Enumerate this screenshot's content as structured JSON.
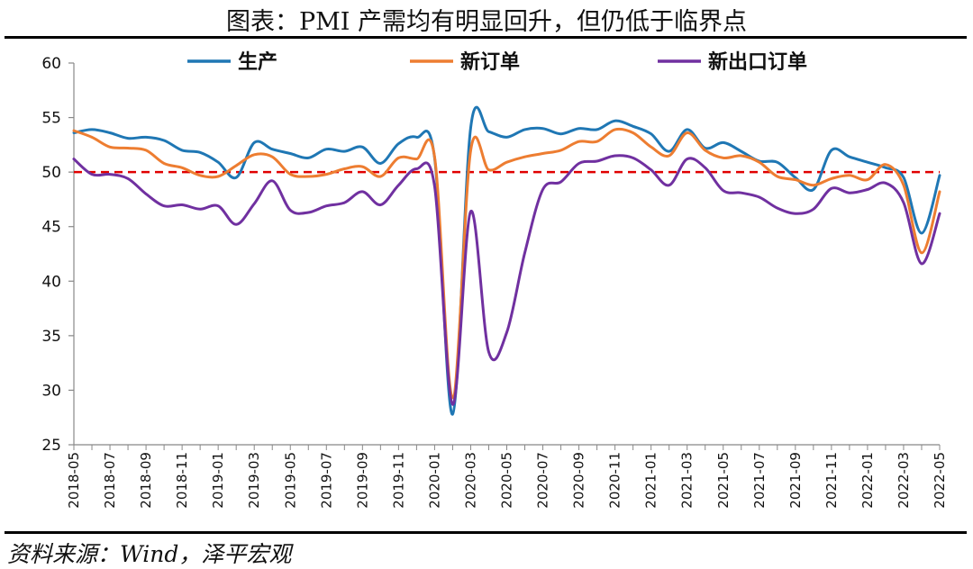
{
  "title": "图表：PMI 产需均有明显回升，但仍低于临界点",
  "source": "资料来源：Wind，泽平宏观",
  "chart_data": {
    "type": "line",
    "x": [
      "2018-05",
      "2018-06",
      "2018-07",
      "2018-08",
      "2018-09",
      "2018-10",
      "2018-11",
      "2018-12",
      "2019-01",
      "2019-02",
      "2019-03",
      "2019-04",
      "2019-05",
      "2019-06",
      "2019-07",
      "2019-08",
      "2019-09",
      "2019-10",
      "2019-11",
      "2019-12",
      "2020-01",
      "2020-02",
      "2020-03",
      "2020-04",
      "2020-05",
      "2020-06",
      "2020-07",
      "2020-08",
      "2020-09",
      "2020-10",
      "2020-11",
      "2020-12",
      "2021-01",
      "2021-02",
      "2021-03",
      "2021-04",
      "2021-05",
      "2021-06",
      "2021-07",
      "2021-08",
      "2021-09",
      "2021-10",
      "2021-11",
      "2021-12",
      "2022-01",
      "2022-02",
      "2022-03",
      "2022-04",
      "2022-05"
    ],
    "x_tick_labels": [
      "2018-05",
      "2018-07",
      "2018-09",
      "2018-11",
      "2019-01",
      "2019-03",
      "2019-05",
      "2019-07",
      "2019-09",
      "2019-11",
      "2020-01",
      "2020-03",
      "2020-05",
      "2020-07",
      "2020-09",
      "2020-11",
      "2021-01",
      "2021-03",
      "2021-05",
      "2021-07",
      "2021-09",
      "2021-11",
      "2022-01",
      "2022-03",
      "2022-05"
    ],
    "y_ticks": [
      25,
      30,
      35,
      40,
      45,
      50,
      55,
      60
    ],
    "ylim": [
      25,
      60
    ],
    "reference_line": {
      "y": 50,
      "color": "#e00000",
      "style": "dashed"
    },
    "legend_position": "top",
    "series": [
      {
        "name": "生产",
        "color": "#1f77b4",
        "values": [
          53.6,
          53.9,
          53.6,
          53.1,
          53.2,
          52.9,
          52.0,
          51.8,
          50.9,
          49.5,
          52.7,
          52.1,
          51.7,
          51.3,
          52.1,
          51.9,
          52.3,
          50.8,
          52.6,
          53.2,
          51.3,
          27.8,
          54.1,
          53.7,
          53.2,
          53.9,
          54.0,
          53.5,
          54.0,
          53.9,
          54.7,
          54.2,
          53.5,
          51.9,
          53.9,
          52.2,
          52.7,
          51.9,
          51.0,
          50.9,
          49.5,
          48.4,
          52.0,
          51.4,
          50.9,
          50.4,
          49.5,
          44.4,
          49.7
        ]
      },
      {
        "name": "新订单",
        "color": "#ed7d31",
        "values": [
          53.8,
          53.2,
          52.3,
          52.2,
          52.0,
          50.8,
          50.4,
          49.7,
          49.6,
          50.6,
          51.6,
          51.4,
          49.8,
          49.6,
          49.8,
          50.3,
          50.5,
          49.6,
          51.3,
          51.2,
          51.4,
          29.3,
          52.0,
          50.2,
          50.9,
          51.4,
          51.7,
          52.0,
          52.8,
          52.8,
          53.9,
          53.6,
          52.3,
          51.5,
          53.6,
          52.0,
          51.3,
          51.5,
          50.9,
          49.6,
          49.3,
          48.8,
          49.4,
          49.7,
          49.3,
          50.7,
          48.8,
          42.6,
          48.2
        ]
      },
      {
        "name": "新出口订单",
        "color": "#7030a0",
        "values": [
          51.2,
          49.8,
          49.8,
          49.4,
          48.0,
          46.9,
          47.0,
          46.6,
          46.9,
          45.2,
          47.1,
          49.2,
          46.5,
          46.3,
          46.9,
          47.2,
          48.2,
          47.0,
          48.8,
          50.3,
          48.7,
          28.7,
          46.4,
          33.5,
          35.3,
          42.6,
          48.4,
          49.1,
          50.8,
          51.0,
          51.5,
          51.3,
          50.2,
          48.8,
          51.2,
          50.4,
          48.3,
          48.1,
          47.7,
          46.7,
          46.2,
          46.6,
          48.5,
          48.1,
          48.4,
          49.0,
          47.2,
          41.6,
          46.2
        ]
      }
    ]
  }
}
